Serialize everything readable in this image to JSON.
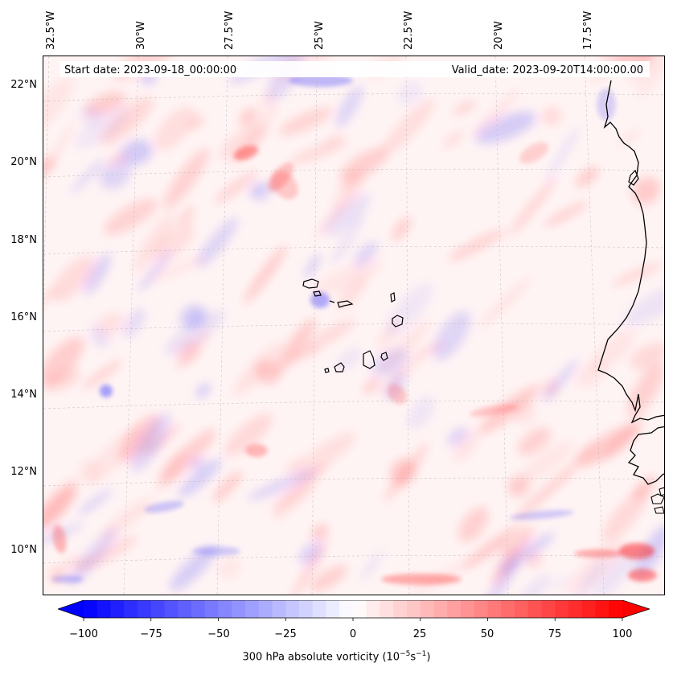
{
  "map": {
    "start_date_label": "Start date: 2023-09-18_00:00:00",
    "valid_date_label": "Valid_date: 2023-09-20T14:00:00.00",
    "longitude_labels": [
      "32.5°W",
      "30°W",
      "27.5°W",
      "25°W",
      "22.5°W",
      "20°W",
      "17.5°W"
    ],
    "latitude_labels": [
      "22°N",
      "20°N",
      "18°N",
      "16°N",
      "14°N",
      "12°N",
      "10°N"
    ],
    "field_colors": {
      "positive": "#ff0000",
      "negative": "#0000ff",
      "zero": "#ffffff",
      "coastline": "#000000",
      "gridline": "#cccccc"
    }
  },
  "colorbar": {
    "label_prefix": "300 hPa absolute vorticity (10",
    "label_exp1": "−5",
    "label_mid": "s",
    "label_exp2": "−1",
    "label_suffix": ")",
    "range": [
      -100,
      100
    ],
    "extend": "both",
    "ticks": [
      "−100",
      "−75",
      "−50",
      "−25",
      "0",
      "25",
      "50",
      "75",
      "100"
    ]
  }
}
